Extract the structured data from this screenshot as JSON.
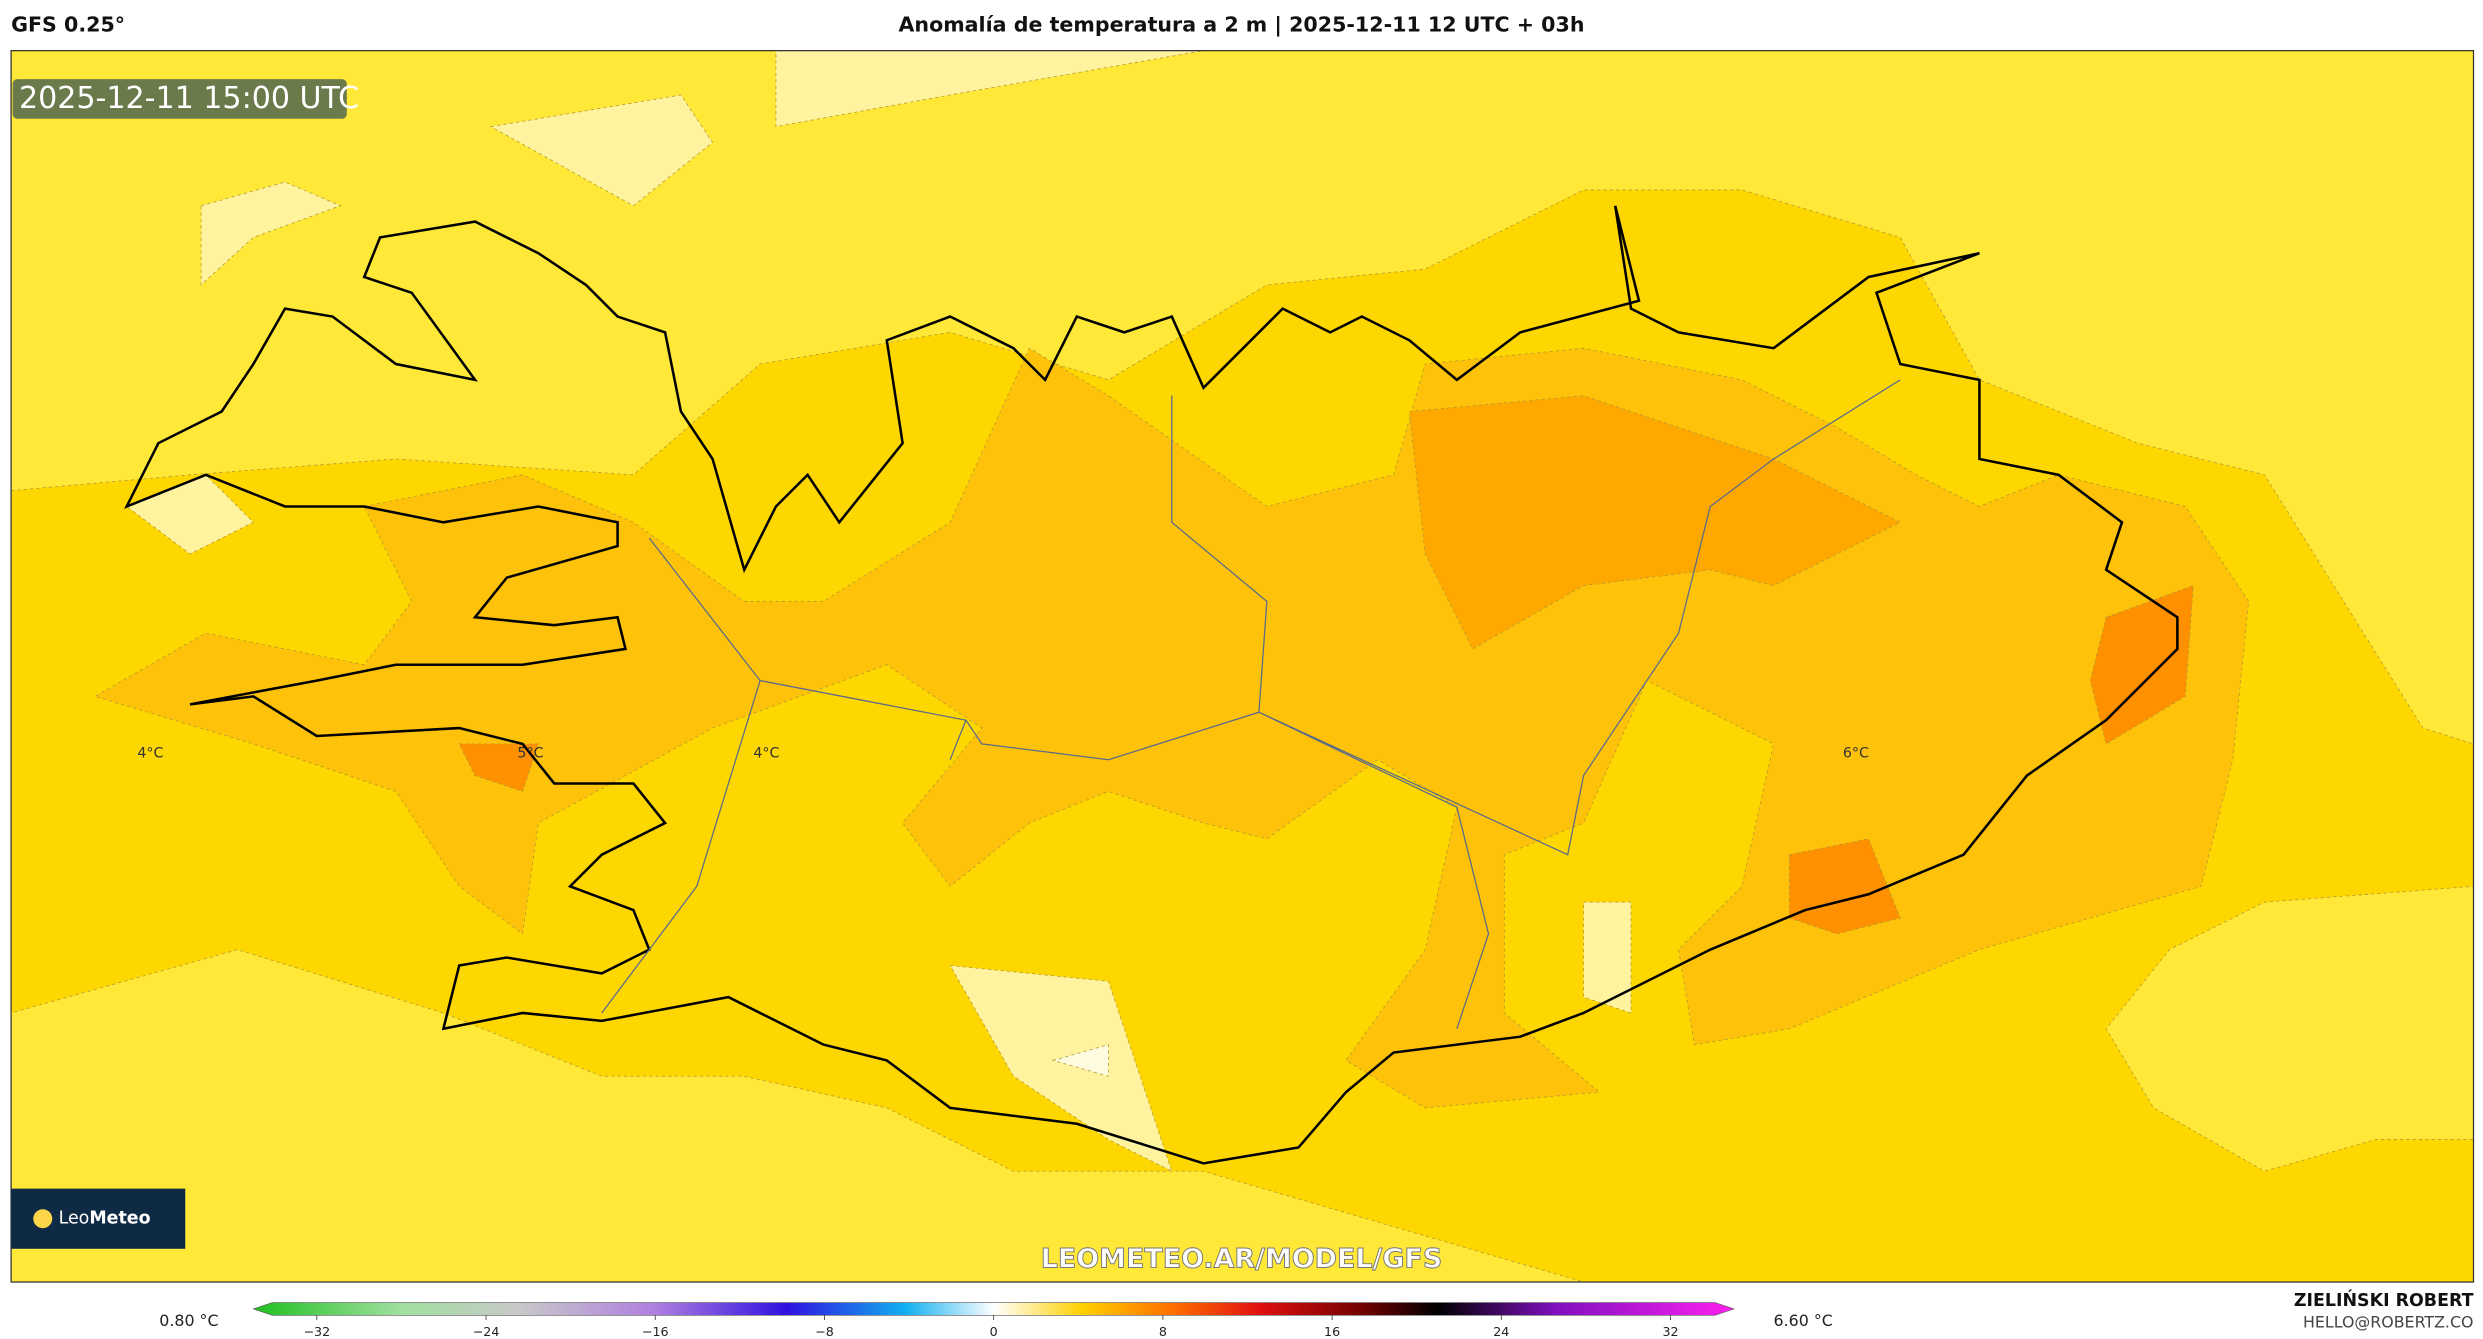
{
  "header": {
    "model": "GFS 0.25°",
    "title": "Anomalía de temperatura a 2 m | 2025-12-11 12 UTC + 03h"
  },
  "map": {
    "valid_time": "2025-12-11 15:00 UTC",
    "contour_labels": [
      "4°C",
      "5°C",
      "4°C",
      "6°C"
    ],
    "watermark": "LEOMETEO.AR/MODEL/GFS",
    "logo": {
      "part1": "Leo",
      "part2": "Meteo"
    }
  },
  "colorbar": {
    "lim": [
      -35,
      35
    ],
    "ticks": [
      {
        "value": -32,
        "label": "−32"
      },
      {
        "value": -24,
        "label": "−24"
      },
      {
        "value": -16,
        "label": "−16"
      },
      {
        "value": -8,
        "label": "−8"
      },
      0,
      8,
      16,
      24,
      32
    ],
    "min_label": "0.80 °C",
    "max_label": "6.60 °C"
  },
  "credits": {
    "author": "ZIELIŃSKI ROBERT",
    "email": "HELLO@ROBERTZ.CO"
  }
}
